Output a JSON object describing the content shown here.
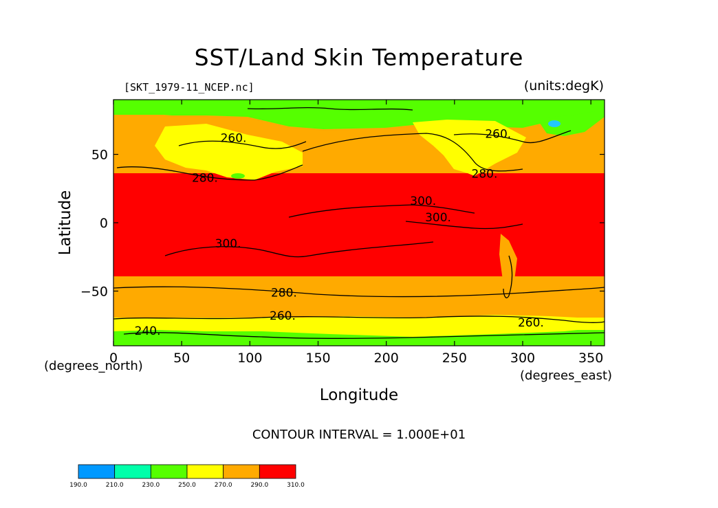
{
  "chart_data": {
    "type": "heatmap",
    "title": "SST/Land Skin Temperature",
    "file_label": "[SKT_1979-11_NCEP.nc]",
    "units_label": "(units:degK)",
    "xlabel": "Longitude",
    "ylabel": "Latitude",
    "x_unit_label": "(degrees_north)",
    "x2_unit_label": "(degrees_east)",
    "xlim": [
      0,
      360
    ],
    "ylim": [
      -90,
      90
    ],
    "x_ticks": [
      0,
      50,
      100,
      150,
      200,
      250,
      300,
      350
    ],
    "y_ticks": [
      50,
      0,
      -50
    ],
    "contour_interval_text": "CONTOUR INTERVAL = 1.000E+01",
    "contour_labels": [
      {
        "text": "260.",
        "lon": 88,
        "lat": 62
      },
      {
        "text": "260.",
        "lon": 282,
        "lat": 65
      },
      {
        "text": "280.",
        "lon": 67,
        "lat": 33
      },
      {
        "text": "280.",
        "lon": 272,
        "lat": 36
      },
      {
        "text": "300.",
        "lon": 227,
        "lat": 16
      },
      {
        "text": "300.",
        "lon": 238,
        "lat": 4
      },
      {
        "text": "300.",
        "lon": 84,
        "lat": -15
      },
      {
        "text": "280.",
        "lon": 125,
        "lat": -51
      },
      {
        "text": "260.",
        "lon": 124,
        "lat": -68
      },
      {
        "text": "260.",
        "lon": 306,
        "lat": -73
      },
      {
        "text": "240.",
        "lon": 25,
        "lat": -79
      }
    ],
    "colorbar": {
      "levels": [
        "190.0",
        "210.0",
        "230.0",
        "250.0",
        "270.0",
        "290.0",
        "310.0"
      ],
      "colors": [
        "#0099ff",
        "#00ffaa",
        "#55ff00",
        "#ffff00",
        "#ffaa00",
        "#ff0000"
      ]
    },
    "temperature_colors": {
      "below_230": "#22c8ff",
      "230_to_250": "#55ff00",
      "250_to_270": "#ffff00",
      "270_to_290": "#ffaa00",
      "above_290": "#ff0000"
    }
  }
}
